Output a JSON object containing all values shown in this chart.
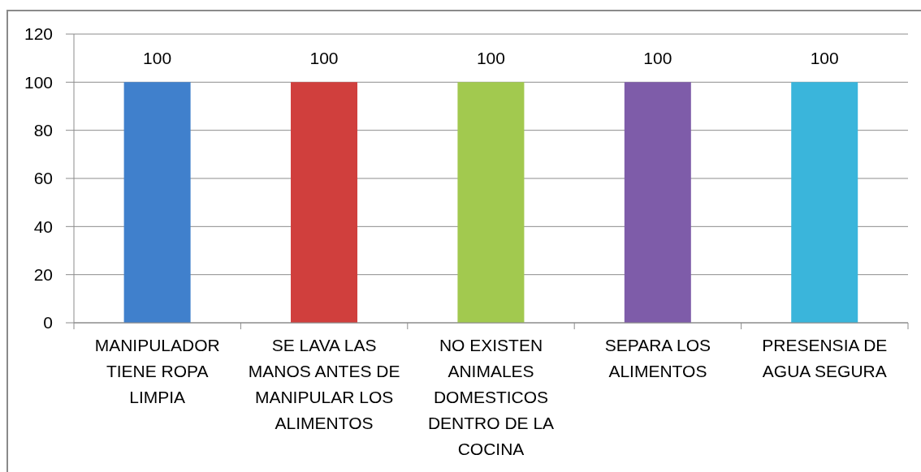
{
  "chart_data": {
    "type": "bar",
    "categories": [
      "MANIPULADOR TIENE ROPA LIMPIA",
      "SE LAVA LAS MANOS ANTES DE MANIPULAR LOS ALIMENTOS",
      "NO EXISTEN ANIMALES DOMESTICOS DENTRO DE LA COCINA",
      "SEPARA LOS ALIMENTOS",
      "PRESENSIA DE AGUA SEGURA"
    ],
    "values": [
      100,
      100,
      100,
      100,
      100
    ],
    "colors": [
      "#4080cc",
      "#d03f3d",
      "#a2c94f",
      "#7e5ca9",
      "#3ab5db"
    ],
    "ylim": [
      0,
      120
    ],
    "yticks": [
      0,
      20,
      40,
      60,
      80,
      100,
      120
    ],
    "grid": "y",
    "data_labels": true
  }
}
